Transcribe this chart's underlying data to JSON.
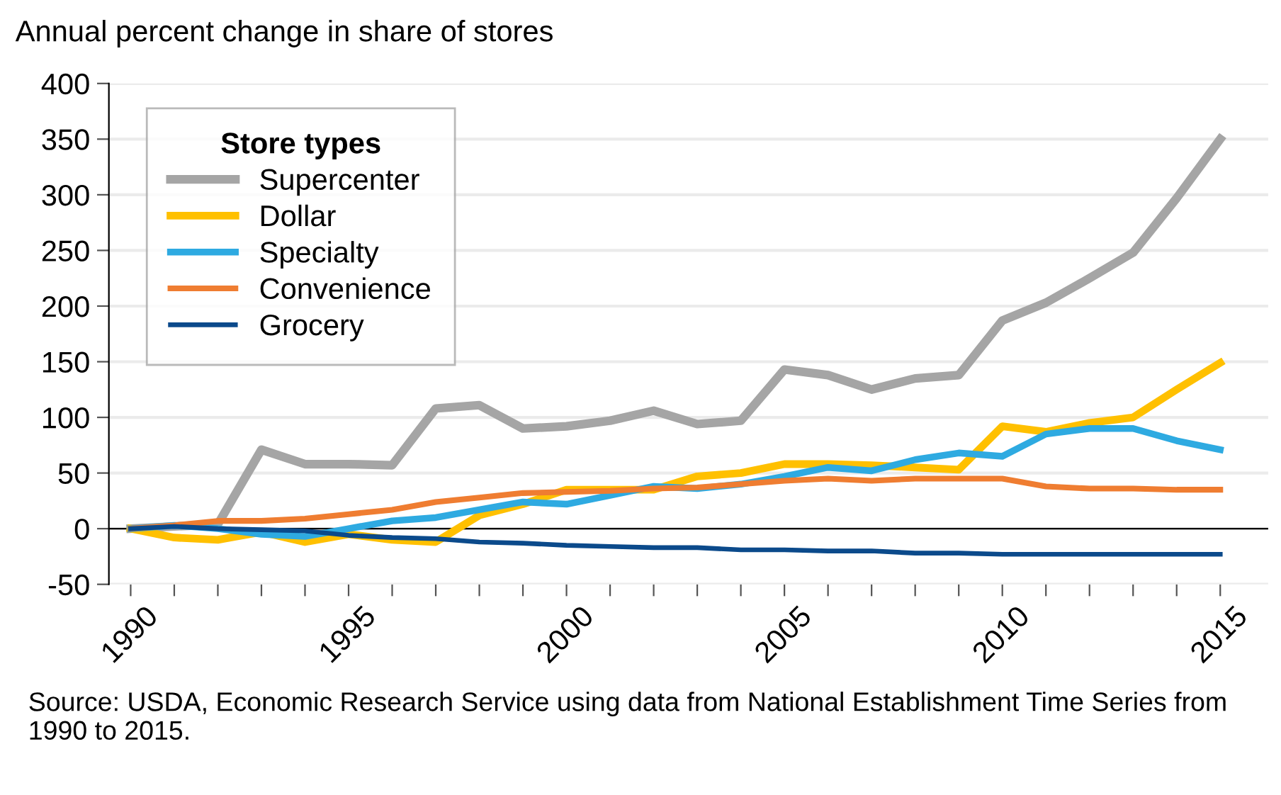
{
  "chart_data": {
    "type": "line",
    "title": "Annual percent change in share of stores",
    "legend_title": "Store types",
    "x": [
      1990,
      1991,
      1992,
      1993,
      1994,
      1995,
      1996,
      1997,
      1998,
      1999,
      2000,
      2001,
      2002,
      2003,
      2004,
      2005,
      2006,
      2007,
      2008,
      2009,
      2010,
      2011,
      2012,
      2013,
      2014,
      2015
    ],
    "series": [
      {
        "name": "Supercenter",
        "color": "#a5a5a5",
        "values": [
          0,
          2,
          4,
          71,
          58,
          58,
          57,
          108,
          111,
          90,
          92,
          97,
          106,
          94,
          97,
          143,
          138,
          125,
          135,
          138,
          187,
          203,
          225,
          248,
          297,
          350
        ]
      },
      {
        "name": "Dollar",
        "color": "#ffc000",
        "values": [
          0,
          -8,
          -10,
          -3,
          -12,
          -5,
          -10,
          -12,
          12,
          22,
          35,
          35,
          35,
          47,
          50,
          58,
          58,
          57,
          55,
          53,
          92,
          87,
          95,
          100,
          125,
          149
        ]
      },
      {
        "name": "Specialty",
        "color": "#2eaae1",
        "values": [
          0,
          3,
          0,
          -5,
          -7,
          0,
          7,
          10,
          17,
          24,
          22,
          30,
          38,
          36,
          40,
          47,
          55,
          52,
          62,
          68,
          65,
          85,
          90,
          90,
          79,
          71
        ]
      },
      {
        "name": "Convenience",
        "color": "#ef7d31",
        "values": [
          0,
          3,
          7,
          7,
          9,
          13,
          17,
          24,
          28,
          32,
          33,
          34,
          36,
          37,
          40,
          43,
          45,
          43,
          45,
          45,
          45,
          38,
          36,
          36,
          35,
          35
        ]
      },
      {
        "name": "Grocery",
        "color": "#0b4a8b",
        "values": [
          0,
          2,
          0,
          -1,
          -2,
          -6,
          -8,
          -9,
          -12,
          -13,
          -15,
          -16,
          -17,
          -17,
          -19,
          -19,
          -20,
          -20,
          -22,
          -22,
          -23,
          -23,
          -23,
          -23,
          -23,
          -23
        ]
      }
    ],
    "xlim": [
      1989.5,
      2016.1
    ],
    "xticks": [
      1990,
      {
        "value": 1991,
        "label": null
      },
      {
        "value": 1992,
        "label": null
      },
      {
        "value": 1993,
        "label": null
      },
      {
        "value": 1994,
        "label": null
      },
      1995,
      {
        "value": 1996,
        "label": null
      },
      {
        "value": 1997,
        "label": null
      },
      {
        "value": 1998,
        "label": null
      },
      {
        "value": 1999,
        "label": null
      },
      2000,
      {
        "value": 2001,
        "label": null
      },
      {
        "value": 2002,
        "label": null
      },
      {
        "value": 2003,
        "label": null
      },
      {
        "value": 2004,
        "label": null
      },
      2005,
      {
        "value": 2006,
        "label": null
      },
      {
        "value": 2007,
        "label": null
      },
      {
        "value": 2008,
        "label": null
      },
      {
        "value": 2009,
        "label": null
      },
      2010,
      {
        "value": 2011,
        "label": null
      },
      {
        "value": 2012,
        "label": null
      },
      {
        "value": 2013,
        "label": null
      },
      {
        "value": 2014,
        "label": null
      },
      2015
    ],
    "ylim": [
      -50,
      400
    ],
    "yticks": [
      -50,
      0,
      50,
      100,
      150,
      200,
      250,
      300,
      350,
      400
    ],
    "ref_lines": [
      {
        "axis": "y",
        "value": 0,
        "color": "#000000"
      }
    ],
    "grid": "y",
    "legend": "top left",
    "annotations": [
      "Source: USDA, Economic Research Service using data from National Establishment Time Series from 1990 to 2015."
    ]
  }
}
